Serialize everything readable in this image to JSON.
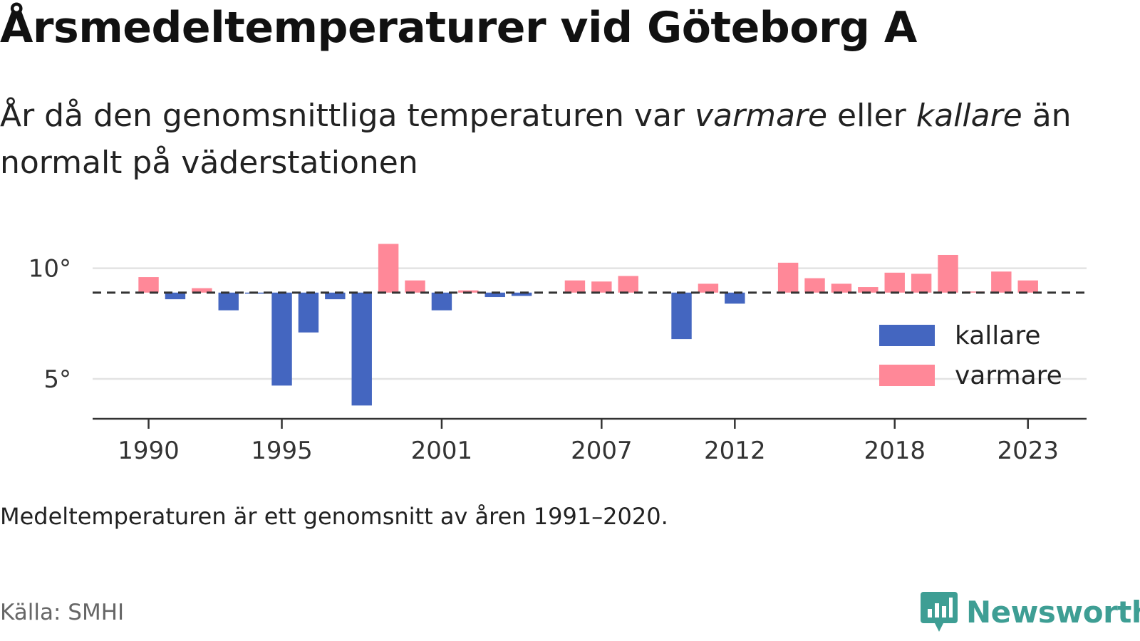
{
  "header": {
    "title": "Årsmedeltemperaturer vid Göteborg A",
    "subtitle_part1": "År då den genomsnittliga temperaturen var ",
    "subtitle_warm": "varmare",
    "subtitle_part2": " eller ",
    "subtitle_cold": "kallare",
    "subtitle_part3": " än normalt på väderstationen"
  },
  "footnote": "Medeltemperaturen är ett genomsnitt av åren 1991–2020.",
  "source": "Källa: SMHI",
  "brand": {
    "name": "Newsworthy",
    "icon": "newsworthy-logo-icon"
  },
  "chart_data": {
    "type": "bar",
    "title": "Årsmedeltemperaturer vid Göteborg A",
    "xlabel": "",
    "ylabel": "",
    "baseline": 8.9,
    "ylim": [
      3.2,
      11.5
    ],
    "xlim": [
      1987.9,
      2025.2
    ],
    "yticks": [
      5,
      10
    ],
    "ytick_labels": [
      "5°",
      "10°"
    ],
    "xticks": [
      1990,
      1995,
      2001,
      2007,
      2012,
      2018,
      2023
    ],
    "xtick_labels": [
      "1990",
      "1995",
      "2001",
      "2007",
      "2012",
      "2018",
      "2023"
    ],
    "grid": true,
    "legend_position": "right",
    "colors": {
      "kallare": "#4466c0",
      "varmare": "#ff8898",
      "baseline": "#333333",
      "grid": "#e3e3e3",
      "axis": "#333333"
    },
    "series": [
      {
        "name": "kallare",
        "color": "#4466c0"
      },
      {
        "name": "varmare",
        "color": "#ff8898"
      }
    ],
    "x": [
      1990,
      1991,
      1992,
      1993,
      1994,
      1995,
      1996,
      1997,
      1998,
      1999,
      2000,
      2001,
      2002,
      2003,
      2004,
      2005,
      2006,
      2007,
      2008,
      2009,
      2010,
      2011,
      2012,
      2013,
      2014,
      2015,
      2016,
      2017,
      2018,
      2019,
      2020,
      2021,
      2022,
      2023
    ],
    "values": [
      9.6,
      8.6,
      9.1,
      8.1,
      8.85,
      4.7,
      7.1,
      8.6,
      3.8,
      11.1,
      9.45,
      8.1,
      9.0,
      8.7,
      8.75,
      8.9,
      9.45,
      9.4,
      9.65,
      8.9,
      6.8,
      9.3,
      8.4,
      8.9,
      10.25,
      9.55,
      9.3,
      9.15,
      9.8,
      9.75,
      10.6,
      8.95,
      9.85,
      9.45
    ]
  }
}
